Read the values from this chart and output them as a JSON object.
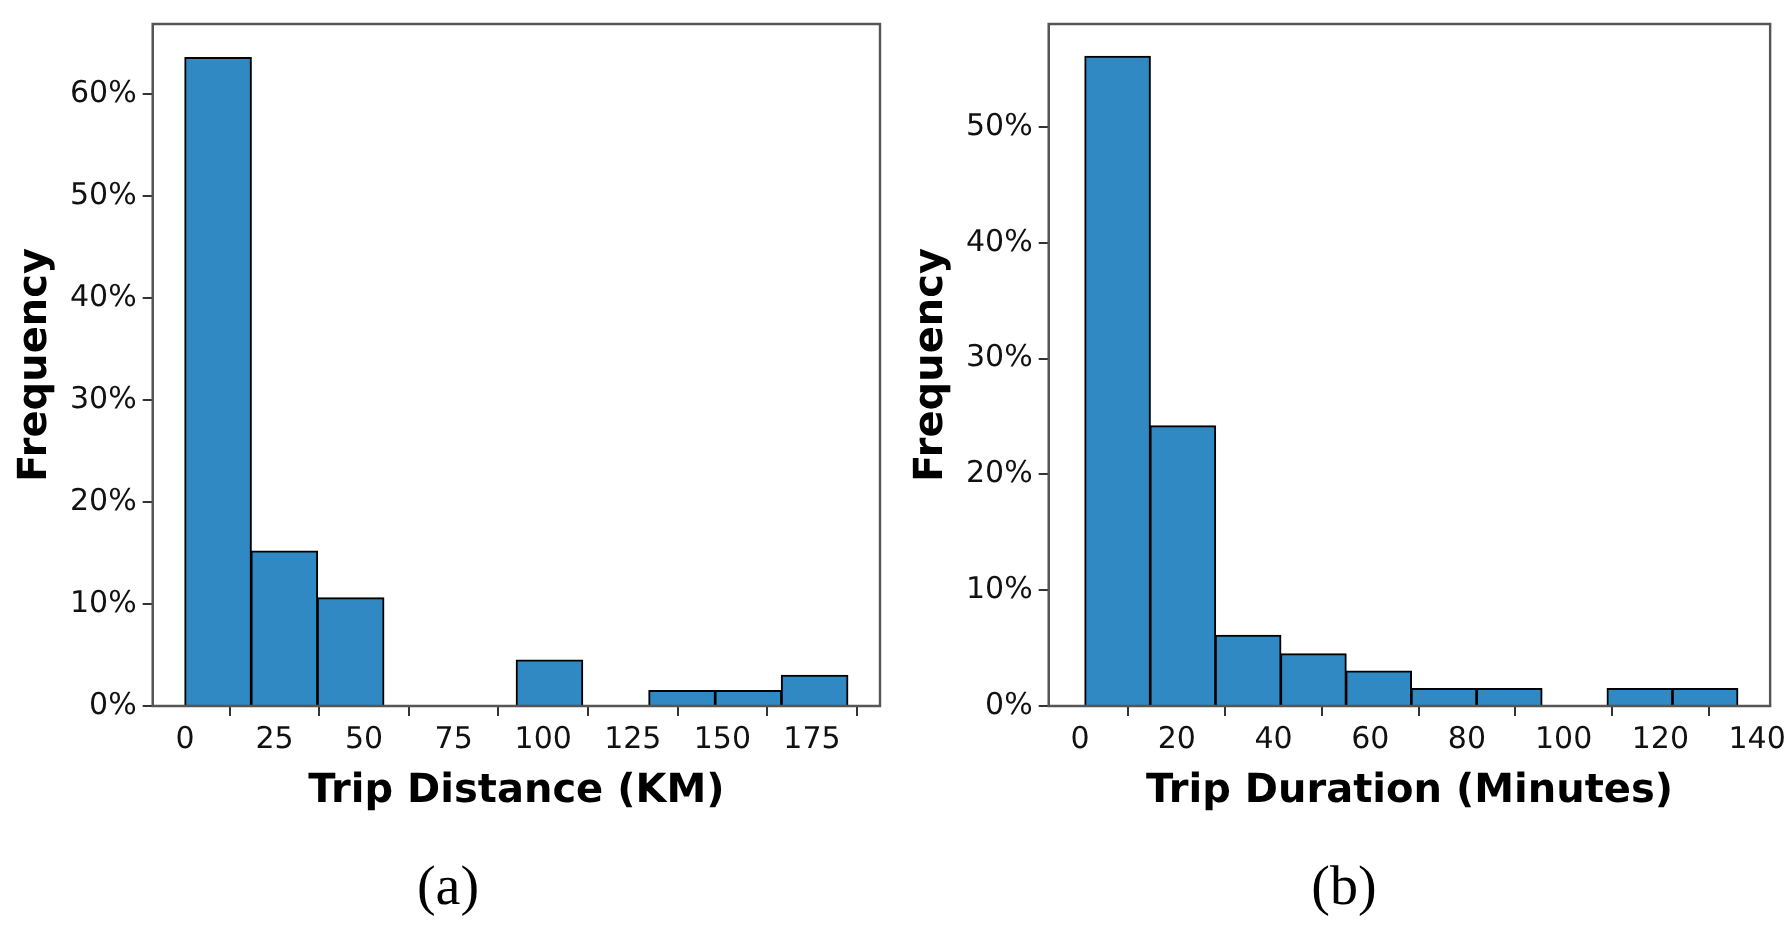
{
  "chart_data": [
    {
      "type": "histogram",
      "xlabel": "Trip Distance (KM)",
      "ylabel": "Frequency",
      "bins": [
        0,
        18.5,
        37,
        55.5,
        74,
        92.5,
        111,
        129.5,
        148,
        166.5,
        185
      ],
      "values": [
        63.6,
        15.2,
        10.6,
        0,
        0,
        4.5,
        0,
        1.5,
        1.5,
        3.0
      ],
      "color": "#3089c3",
      "xlim": [
        -9,
        194
      ],
      "xticks": [
        0,
        25,
        50,
        75,
        100,
        125,
        150,
        175
      ],
      "ylim": [
        0,
        66.9
      ],
      "yticks": [
        {
          "value": 0,
          "label": "0%"
        },
        {
          "value": 10,
          "label": "10%"
        },
        {
          "value": 20,
          "label": "20%"
        },
        {
          "value": 30,
          "label": "30%"
        },
        {
          "value": 40,
          "label": "40%"
        },
        {
          "value": 50,
          "label": "50%"
        },
        {
          "value": 60,
          "label": "60%"
        }
      ],
      "annotations": [
        "(a)"
      ]
    },
    {
      "type": "histogram",
      "xlabel": "Trip Duration (Minutes)",
      "ylabel": "Frequency",
      "bins": [
        1,
        14.5,
        28,
        41.5,
        55,
        68.5,
        82,
        95.5,
        109,
        122.5,
        136
      ],
      "values": [
        56.1,
        24.2,
        6.1,
        4.5,
        3.0,
        1.5,
        1.5,
        0,
        1.5,
        1.5
      ],
      "color": "#3089c3",
      "xlim": [
        -6.5,
        142.7
      ],
      "xticks": [
        0,
        20,
        40,
        60,
        80,
        100,
        120,
        140
      ],
      "ylim": [
        0,
        58.9
      ],
      "yticks": [
        {
          "value": 0,
          "label": "0%"
        },
        {
          "value": 10,
          "label": "10%"
        },
        {
          "value": 20,
          "label": "20%"
        },
        {
          "value": 30,
          "label": "30%"
        },
        {
          "value": 40,
          "label": "40%"
        },
        {
          "value": 50,
          "label": "50%"
        }
      ],
      "annotations": [
        "(b)"
      ]
    }
  ]
}
